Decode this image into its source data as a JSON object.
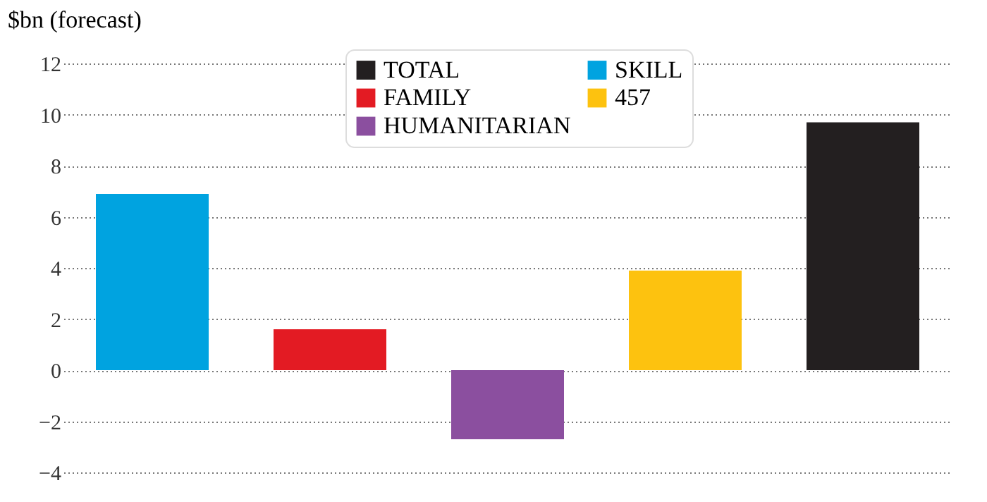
{
  "chart_data": {
    "type": "bar",
    "ylabel": "$bn (forecast)",
    "categories": [
      null,
      null,
      null,
      null,
      null
    ],
    "series": [
      {
        "name": "TOTAL",
        "color": "#231f20",
        "values": [
          null,
          null,
          null,
          null,
          9.7
        ]
      },
      {
        "name": "FAMILY",
        "color": "#e31b23",
        "values": [
          null,
          1.6,
          null,
          null,
          null
        ]
      },
      {
        "name": "HUMANITARIAN",
        "color": "#8b4f9f",
        "values": [
          null,
          null,
          -2.7,
          null,
          null
        ]
      },
      {
        "name": "SKILL",
        "color": "#00a3e0",
        "values": [
          6.9,
          null,
          null,
          null,
          null
        ]
      },
      {
        "name": "457",
        "color": "#fdc20f",
        "values": [
          null,
          null,
          null,
          3.9,
          null
        ]
      }
    ],
    "ylim": [
      -4,
      12
    ],
    "yticks": [
      -4,
      -2,
      0,
      2,
      4,
      6,
      8,
      10,
      12
    ],
    "grid": "y",
    "legend": "top",
    "tick_labels": "y"
  }
}
